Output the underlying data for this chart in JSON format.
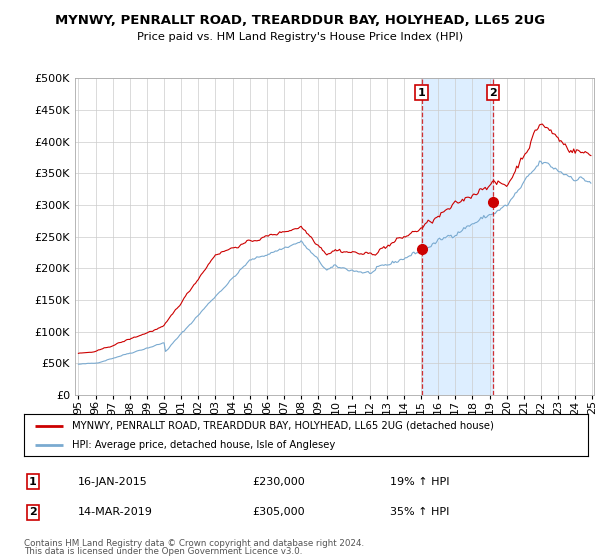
{
  "title": "MYNWY, PENRALLT ROAD, TREARDDUR BAY, HOLYHEAD, LL65 2UG",
  "subtitle": "Price paid vs. HM Land Registry's House Price Index (HPI)",
  "ytick_vals": [
    0,
    50000,
    100000,
    150000,
    200000,
    250000,
    300000,
    350000,
    400000,
    450000,
    500000
  ],
  "ylim": [
    0,
    500000
  ],
  "x_start_year": 1995,
  "x_end_year": 2025,
  "xtick_years": [
    1995,
    1996,
    1997,
    1998,
    1999,
    2000,
    2001,
    2002,
    2003,
    2004,
    2005,
    2006,
    2007,
    2008,
    2009,
    2010,
    2011,
    2012,
    2013,
    2014,
    2015,
    2016,
    2017,
    2018,
    2019,
    2020,
    2021,
    2022,
    2023,
    2024,
    2025
  ],
  "red_line_color": "#cc0000",
  "blue_line_color": "#7aaad0",
  "shaded_region_color": "#ddeeff",
  "grid_color": "#cccccc",
  "annotation1": {
    "label": "1",
    "date_x": 2015.04,
    "price": 230000,
    "text": "16-JAN-2015",
    "amount": "£230,000",
    "pct": "19% ↑ HPI"
  },
  "annotation2": {
    "label": "2",
    "date_x": 2019.21,
    "price": 305000,
    "text": "14-MAR-2019",
    "amount": "£305,000",
    "pct": "35% ↑ HPI"
  },
  "legend_red_label": "MYNWY, PENRALLT ROAD, TREARDDUR BAY, HOLYHEAD, LL65 2UG (detached house)",
  "legend_blue_label": "HPI: Average price, detached house, Isle of Anglesey",
  "footer1": "Contains HM Land Registry data © Crown copyright and database right 2024.",
  "footer2": "This data is licensed under the Open Government Licence v3.0."
}
